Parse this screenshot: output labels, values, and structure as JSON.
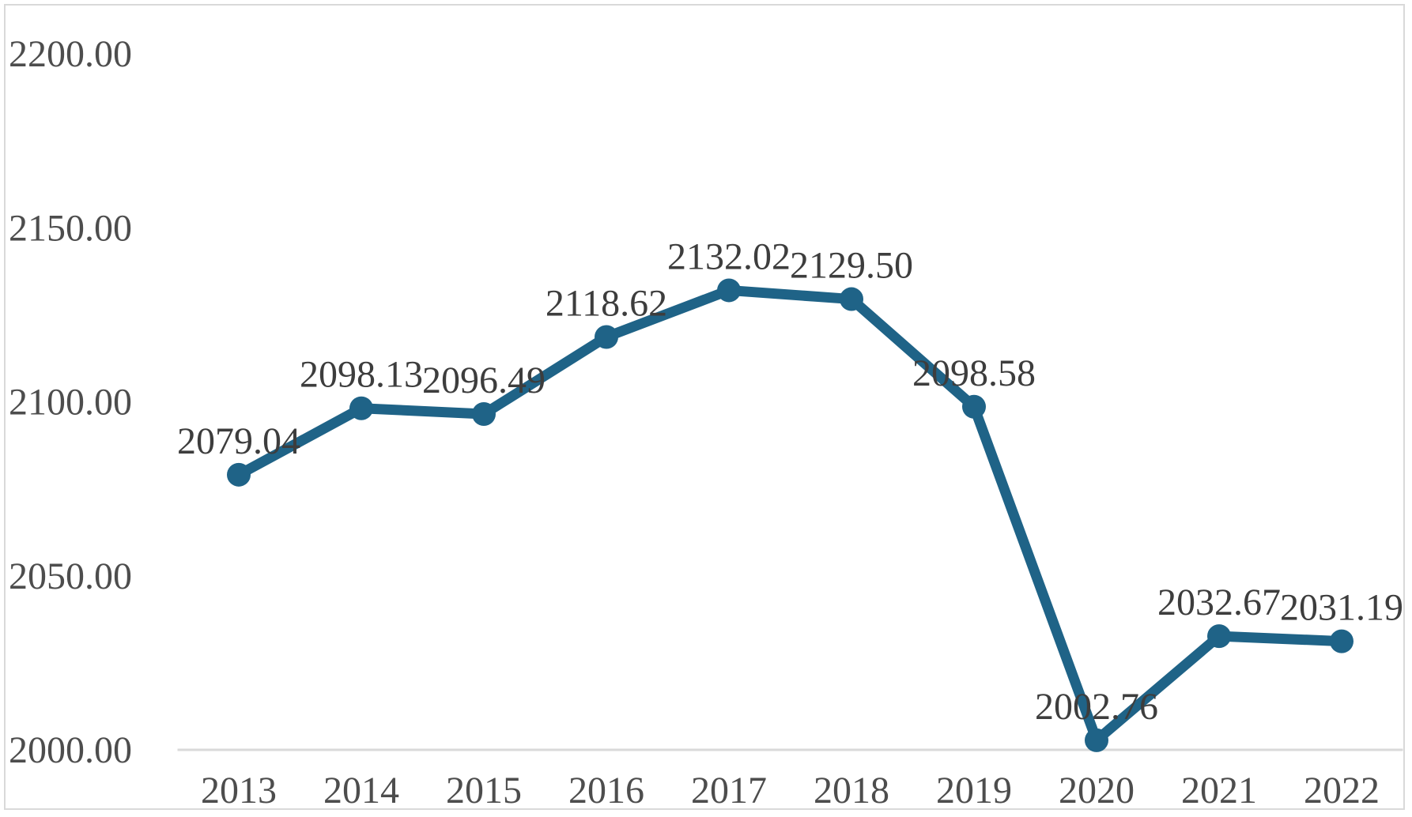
{
  "chart_data": {
    "type": "line",
    "title": "",
    "xlabel": "",
    "ylabel": "",
    "categories": [
      "2013",
      "2014",
      "2015",
      "2016",
      "2017",
      "2018",
      "2019",
      "2020",
      "2021",
      "2022"
    ],
    "series": [
      {
        "name": "series-1",
        "values": [
          2079.04,
          2098.13,
          2096.49,
          2118.62,
          2132.02,
          2129.5,
          2098.58,
          2002.76,
          2032.67,
          2031.19
        ]
      }
    ],
    "data_labels": [
      "2079.04",
      "2098.13",
      "2096.49",
      "2118.62",
      "2132.02",
      "2129.50",
      "2098.58",
      "2002.76",
      "2032.67",
      "2031.19"
    ],
    "ylim": [
      2000,
      2200
    ],
    "y_tick_values": [
      2200,
      2150,
      2100,
      2050,
      2000
    ],
    "y_tick_labels": [
      "2200.00",
      "2150.00",
      "2100.00",
      "2050.00",
      "2000.00"
    ],
    "grid": "off",
    "legend": "none",
    "marker": "circle",
    "colors": {
      "line": "#1F6387",
      "marker": "#1F6387",
      "axis_line": "#d9d9d9",
      "frame_border": "#d9d9d9",
      "data_label_text": "#3d3d3d",
      "tick_text": "#4d4d4d",
      "background": "#ffffff"
    }
  }
}
